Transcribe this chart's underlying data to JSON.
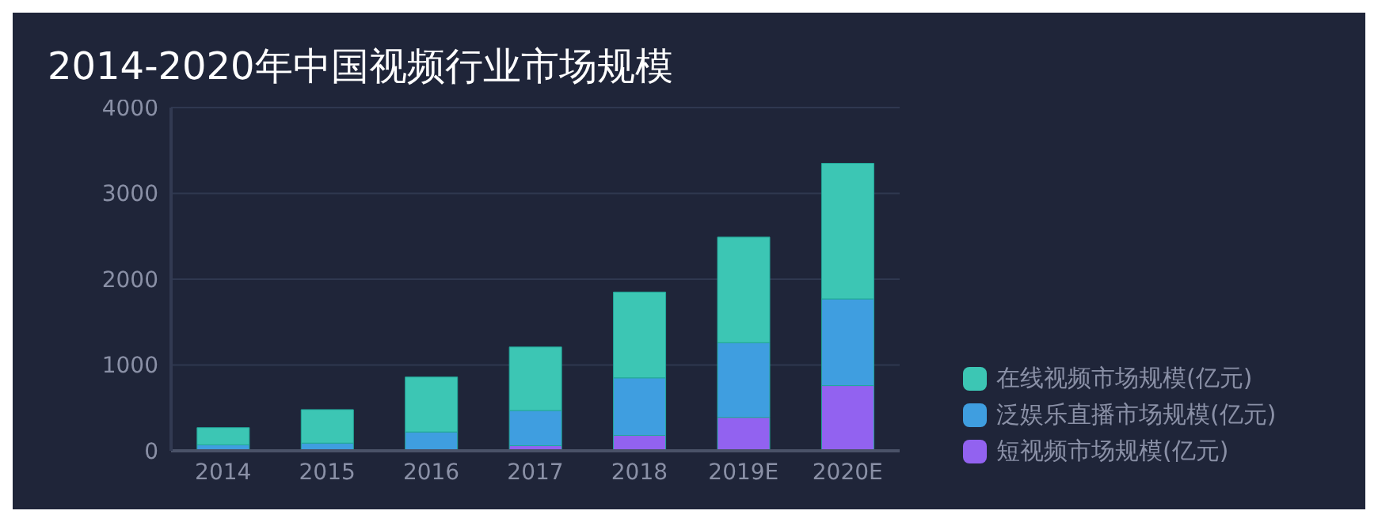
{
  "chart_data": {
    "type": "bar",
    "title": "2014-2020年中国视频行业市场规模",
    "categories": [
      "2014",
      "2015",
      "2016",
      "2017",
      "2018",
      "2019E",
      "2020E"
    ],
    "stacked": true,
    "series": [
      {
        "name": "短视频市场规模(亿元)",
        "color": "#9262f0",
        "values": [
          0,
          0,
          0,
          60,
          180,
          390,
          760
        ]
      },
      {
        "name": "泛娱乐直播市场规模(亿元)",
        "color": "#3f9ee0",
        "values": [
          70,
          90,
          220,
          410,
          670,
          870,
          1010
        ]
      },
      {
        "name": "在线视频市场规模(亿元)",
        "color": "#3cc6b4",
        "values": [
          200,
          390,
          640,
          740,
          1000,
          1230,
          1580
        ]
      }
    ],
    "ylim": [
      0,
      4000
    ],
    "yticks": [
      0,
      1000,
      2000,
      3000,
      4000
    ],
    "grid": "y",
    "legend": "bottom right"
  }
}
